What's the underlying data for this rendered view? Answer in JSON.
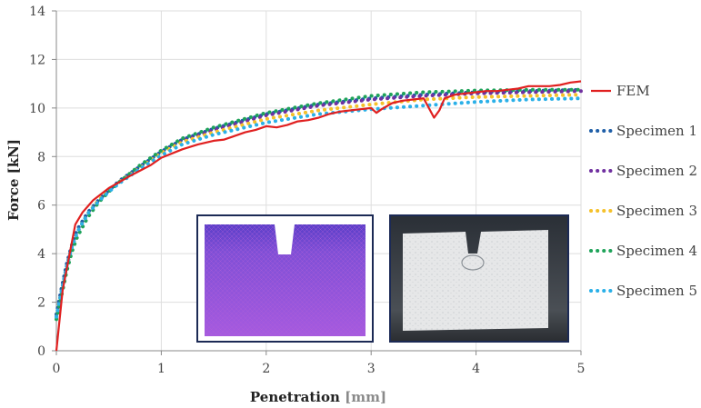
{
  "chart_data": {
    "type": "line",
    "xlabel": "Penetration",
    "xlabel_unit": "[mm]",
    "ylabel": "Force [kN]",
    "xlim": [
      0,
      5
    ],
    "ylim": [
      0,
      14
    ],
    "xticks": [
      "0",
      "1",
      "2",
      "3",
      "4",
      "5"
    ],
    "yticks": [
      "0",
      "2",
      "4",
      "6",
      "8",
      "10",
      "12",
      "14"
    ],
    "grid": true,
    "legend_position": "right",
    "series": [
      {
        "name": "FEM",
        "style": "solid",
        "color": "#e02020",
        "x": [
          0,
          0.06,
          0.18,
          0.25,
          0.35,
          0.5,
          0.7,
          0.9,
          1.0,
          1.2,
          1.35,
          1.5,
          1.6,
          1.7,
          1.8,
          1.9,
          2.0,
          2.1,
          2.2,
          2.3,
          2.4,
          2.5,
          2.6,
          2.7,
          2.8,
          2.9,
          3.0,
          3.05,
          3.1,
          3.2,
          3.3,
          3.4,
          3.5,
          3.55,
          3.6,
          3.65,
          3.7,
          3.8,
          3.9,
          4.0,
          4.1,
          4.2,
          4.3,
          4.4,
          4.5,
          4.6,
          4.7,
          4.8,
          4.9,
          5.0
        ],
        "y": [
          0,
          2.5,
          5.2,
          5.7,
          6.2,
          6.7,
          7.2,
          7.65,
          7.95,
          8.3,
          8.5,
          8.65,
          8.7,
          8.85,
          9.0,
          9.1,
          9.25,
          9.2,
          9.3,
          9.45,
          9.5,
          9.6,
          9.75,
          9.85,
          9.9,
          9.95,
          10.0,
          9.8,
          9.95,
          10.2,
          10.3,
          10.35,
          10.4,
          10.0,
          9.6,
          9.9,
          10.4,
          10.55,
          10.6,
          10.65,
          10.7,
          10.7,
          10.75,
          10.8,
          10.9,
          10.9,
          10.9,
          10.95,
          11.05,
          11.1
        ]
      },
      {
        "name": "Specimen 1",
        "style": "dotted",
        "color": "#1f5fa8",
        "x": [
          0,
          0.05,
          0.1,
          0.15,
          0.2,
          0.3,
          0.4,
          0.5,
          0.6,
          0.8,
          1.0,
          1.2,
          1.5,
          2.0,
          2.5,
          3.0,
          3.5,
          4.0,
          4.5,
          5.0
        ],
        "y": [
          1.5,
          2.6,
          3.6,
          4.4,
          5.0,
          5.7,
          6.2,
          6.6,
          7.0,
          7.6,
          8.2,
          8.7,
          9.15,
          9.75,
          10.15,
          10.4,
          10.55,
          10.65,
          10.7,
          10.75
        ]
      },
      {
        "name": "Specimen 2",
        "style": "dotted",
        "color": "#7030a0",
        "x": [
          0,
          0.05,
          0.1,
          0.15,
          0.2,
          0.3,
          0.4,
          0.5,
          0.6,
          0.8,
          1.0,
          1.2,
          1.5,
          2.0,
          2.5,
          3.0,
          3.5,
          4.0,
          4.5,
          5.0
        ],
        "y": [
          1.4,
          2.5,
          3.5,
          4.3,
          4.9,
          5.65,
          6.15,
          6.6,
          6.95,
          7.55,
          8.15,
          8.65,
          9.1,
          9.7,
          10.1,
          10.35,
          10.5,
          10.6,
          10.65,
          10.7
        ]
      },
      {
        "name": "Specimen 3",
        "style": "dotted",
        "color": "#f5c12b",
        "x": [
          0,
          0.05,
          0.1,
          0.15,
          0.2,
          0.3,
          0.4,
          0.5,
          0.6,
          0.8,
          1.0,
          1.2,
          1.5,
          2.0,
          2.5,
          3.0,
          3.5,
          4.0,
          4.5,
          5.0
        ],
        "y": [
          1.4,
          2.5,
          3.5,
          4.3,
          4.9,
          5.65,
          6.2,
          6.6,
          6.95,
          7.55,
          8.15,
          8.6,
          9.0,
          9.55,
          9.9,
          10.15,
          10.35,
          10.45,
          10.5,
          10.55
        ]
      },
      {
        "name": "Specimen 4",
        "style": "dotted",
        "color": "#1fa35a",
        "x": [
          0,
          0.05,
          0.1,
          0.15,
          0.2,
          0.3,
          0.4,
          0.5,
          0.6,
          0.8,
          1.0,
          1.2,
          1.5,
          2.0,
          2.5,
          3.0,
          3.5,
          4.0,
          4.5,
          5.0
        ],
        "y": [
          1.3,
          2.3,
          3.3,
          4.1,
          4.7,
          5.5,
          6.1,
          6.55,
          6.95,
          7.65,
          8.25,
          8.75,
          9.2,
          9.8,
          10.2,
          10.5,
          10.65,
          10.72,
          10.75,
          10.75
        ]
      },
      {
        "name": "Specimen 5",
        "style": "dotted",
        "color": "#2ab0e8",
        "x": [
          0,
          0.05,
          0.1,
          0.15,
          0.2,
          0.3,
          0.4,
          0.5,
          0.6,
          0.8,
          1.0,
          1.2,
          1.5,
          2.0,
          2.5,
          3.0,
          3.5,
          4.0,
          4.5,
          5.0
        ],
        "y": [
          1.4,
          2.5,
          3.5,
          4.3,
          4.9,
          5.65,
          6.15,
          6.55,
          6.9,
          7.5,
          8.05,
          8.5,
          8.9,
          9.4,
          9.75,
          9.95,
          10.1,
          10.25,
          10.35,
          10.4
        ]
      }
    ]
  },
  "insets": [
    {
      "name": "fem-mesh-image",
      "border_color": "#1c2a55"
    },
    {
      "name": "specimen-photo",
      "border_color": "#1c2a55"
    }
  ]
}
